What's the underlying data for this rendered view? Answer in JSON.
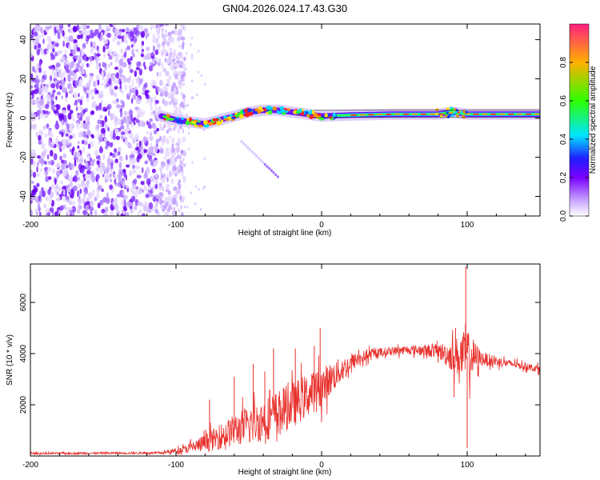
{
  "title": "GN04.2026.024.17.43.G30",
  "chart_data": [
    {
      "type": "heatmap",
      "xlabel": "Height of straight line (km)",
      "ylabel": "Frequency (Hz)",
      "xlim": [
        -200,
        150
      ],
      "ylim": [
        -50,
        48
      ],
      "xticks": [
        -200,
        -100,
        0,
        100
      ],
      "yticks": [
        -40,
        -20,
        0,
        20,
        40
      ],
      "colorbar": {
        "label": "Normalized spectral amplitude",
        "range": [
          0,
          1
        ],
        "ticks": [
          0.0,
          0.2,
          0.4,
          0.6,
          0.8
        ]
      },
      "noise_region": {
        "x_range": [
          -200,
          -100
        ],
        "y_range": [
          -50,
          48
        ]
      },
      "signal_ridge": {
        "points": [
          {
            "x": -110,
            "y": 1
          },
          {
            "x": -100,
            "y": -1
          },
          {
            "x": -90,
            "y": -2
          },
          {
            "x": -80,
            "y": -3
          },
          {
            "x": -70,
            "y": -1
          },
          {
            "x": -60,
            "y": 1
          },
          {
            "x": -50,
            "y": 3
          },
          {
            "x": -40,
            "y": 4
          },
          {
            "x": -30,
            "y": 4
          },
          {
            "x": -20,
            "y": 3
          },
          {
            "x": -10,
            "y": 2
          },
          {
            "x": 0,
            "y": 1
          },
          {
            "x": 20,
            "y": 1.5
          },
          {
            "x": 50,
            "y": 2
          },
          {
            "x": 80,
            "y": 2
          },
          {
            "x": 90,
            "y": 3
          },
          {
            "x": 100,
            "y": 2
          },
          {
            "x": 150,
            "y": 2
          }
        ]
      },
      "tail_streak": {
        "x_range": [
          -55,
          -30
        ],
        "y_range": [
          -12,
          -30
        ]
      }
    },
    {
      "type": "line",
      "xlabel": "Height of straight line (km)",
      "ylabel": "SNR (10 * v/v)",
      "xlim": [
        -200,
        150
      ],
      "ylim": [
        0,
        7500
      ],
      "xticks": [
        -200,
        -100,
        0,
        100
      ],
      "yticks": [
        2000,
        4000,
        6000
      ],
      "series": [
        {
          "name": "SNR",
          "color": "#e8302c",
          "envelope": [
            {
              "x": -200,
              "base": 100,
              "amp": 60
            },
            {
              "x": -110,
              "base": 120,
              "amp": 60
            },
            {
              "x": -95,
              "base": 250,
              "amp": 200
            },
            {
              "x": -80,
              "base": 500,
              "amp": 500
            },
            {
              "x": -60,
              "base": 1000,
              "amp": 900
            },
            {
              "x": -40,
              "base": 1400,
              "amp": 1200
            },
            {
              "x": -20,
              "base": 2000,
              "amp": 1300
            },
            {
              "x": 0,
              "base": 2700,
              "amp": 1100
            },
            {
              "x": 10,
              "base": 3200,
              "amp": 800
            },
            {
              "x": 25,
              "base": 3800,
              "amp": 400
            },
            {
              "x": 40,
              "base": 4050,
              "amp": 250
            },
            {
              "x": 60,
              "base": 4150,
              "amp": 250
            },
            {
              "x": 80,
              "base": 4100,
              "amp": 400
            },
            {
              "x": 90,
              "base": 3900,
              "amp": 900
            },
            {
              "x": 100,
              "base": 3900,
              "amp": 1500
            },
            {
              "x": 110,
              "base": 3800,
              "amp": 400
            },
            {
              "x": 130,
              "base": 3600,
              "amp": 200
            },
            {
              "x": 150,
              "base": 3400,
              "amp": 200
            }
          ],
          "spikes": [
            {
              "x": -77,
              "y": 2200
            },
            {
              "x": -60,
              "y": 3100
            },
            {
              "x": -47,
              "y": 3600
            },
            {
              "x": -39,
              "y": 3300
            },
            {
              "x": -33,
              "y": 4200
            },
            {
              "x": -18,
              "y": 4200
            },
            {
              "x": -5,
              "y": 4300
            },
            {
              "x": -1,
              "y": 5000
            },
            {
              "x": 92,
              "y": 5000
            },
            {
              "x": 99,
              "y": 7400
            },
            {
              "x": 100,
              "y": 300
            },
            {
              "x": 91,
              "y": 2300
            }
          ]
        }
      ]
    }
  ]
}
